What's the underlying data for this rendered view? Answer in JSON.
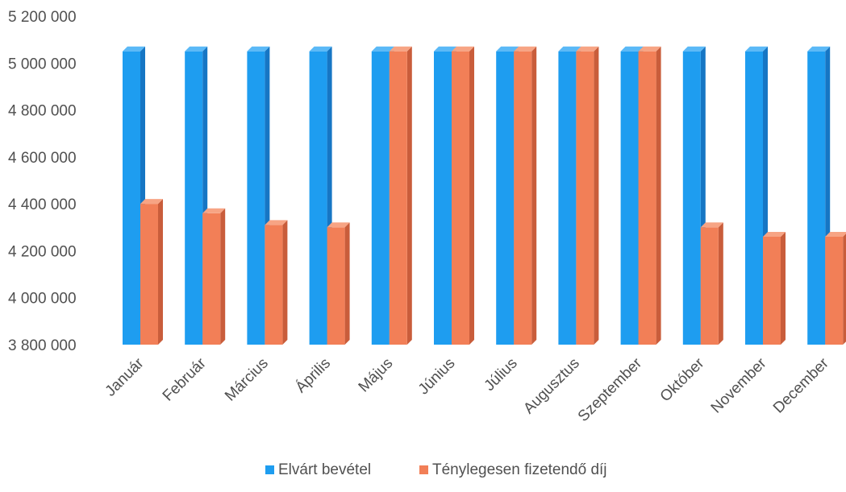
{
  "chart_data": {
    "type": "bar",
    "categories": [
      "Január",
      "Február",
      "Március",
      "Április",
      "Május",
      "Június",
      "Július",
      "Augusztus",
      "Szeptember",
      "Október",
      "November",
      "December"
    ],
    "series": [
      {
        "name": "Elvárt bevétel",
        "values": [
          5050000,
          5050000,
          5050000,
          5050000,
          5050000,
          5050000,
          5050000,
          5050000,
          5050000,
          5050000,
          5050000,
          5050000
        ]
      },
      {
        "name": "Ténylegesen fizetendő díj",
        "values": [
          4400000,
          4360000,
          4310000,
          4300000,
          5050000,
          5050000,
          5050000,
          5050000,
          5050000,
          4300000,
          4260000,
          4260000
        ]
      }
    ],
    "ylim": [
      3800000,
      5200000
    ],
    "yticks": [
      3800000,
      4000000,
      4200000,
      4400000,
      4600000,
      4800000,
      5000000,
      5200000
    ],
    "ytick_labels": [
      "3 800 000",
      "4 000 000",
      "4 200 000",
      "4 400 000",
      "4 600 000",
      "4 800 000",
      "5 000 000",
      "5 200 000"
    ],
    "grid": false,
    "legend_position": "bottom",
    "colors": {
      "series0_front": "#1e9df0",
      "series0_side": "#1676c4",
      "series0_top": "#5ab9f7",
      "series1_front": "#f27f57",
      "series1_side": "#c95d3b",
      "series1_top": "#f7a484"
    }
  }
}
